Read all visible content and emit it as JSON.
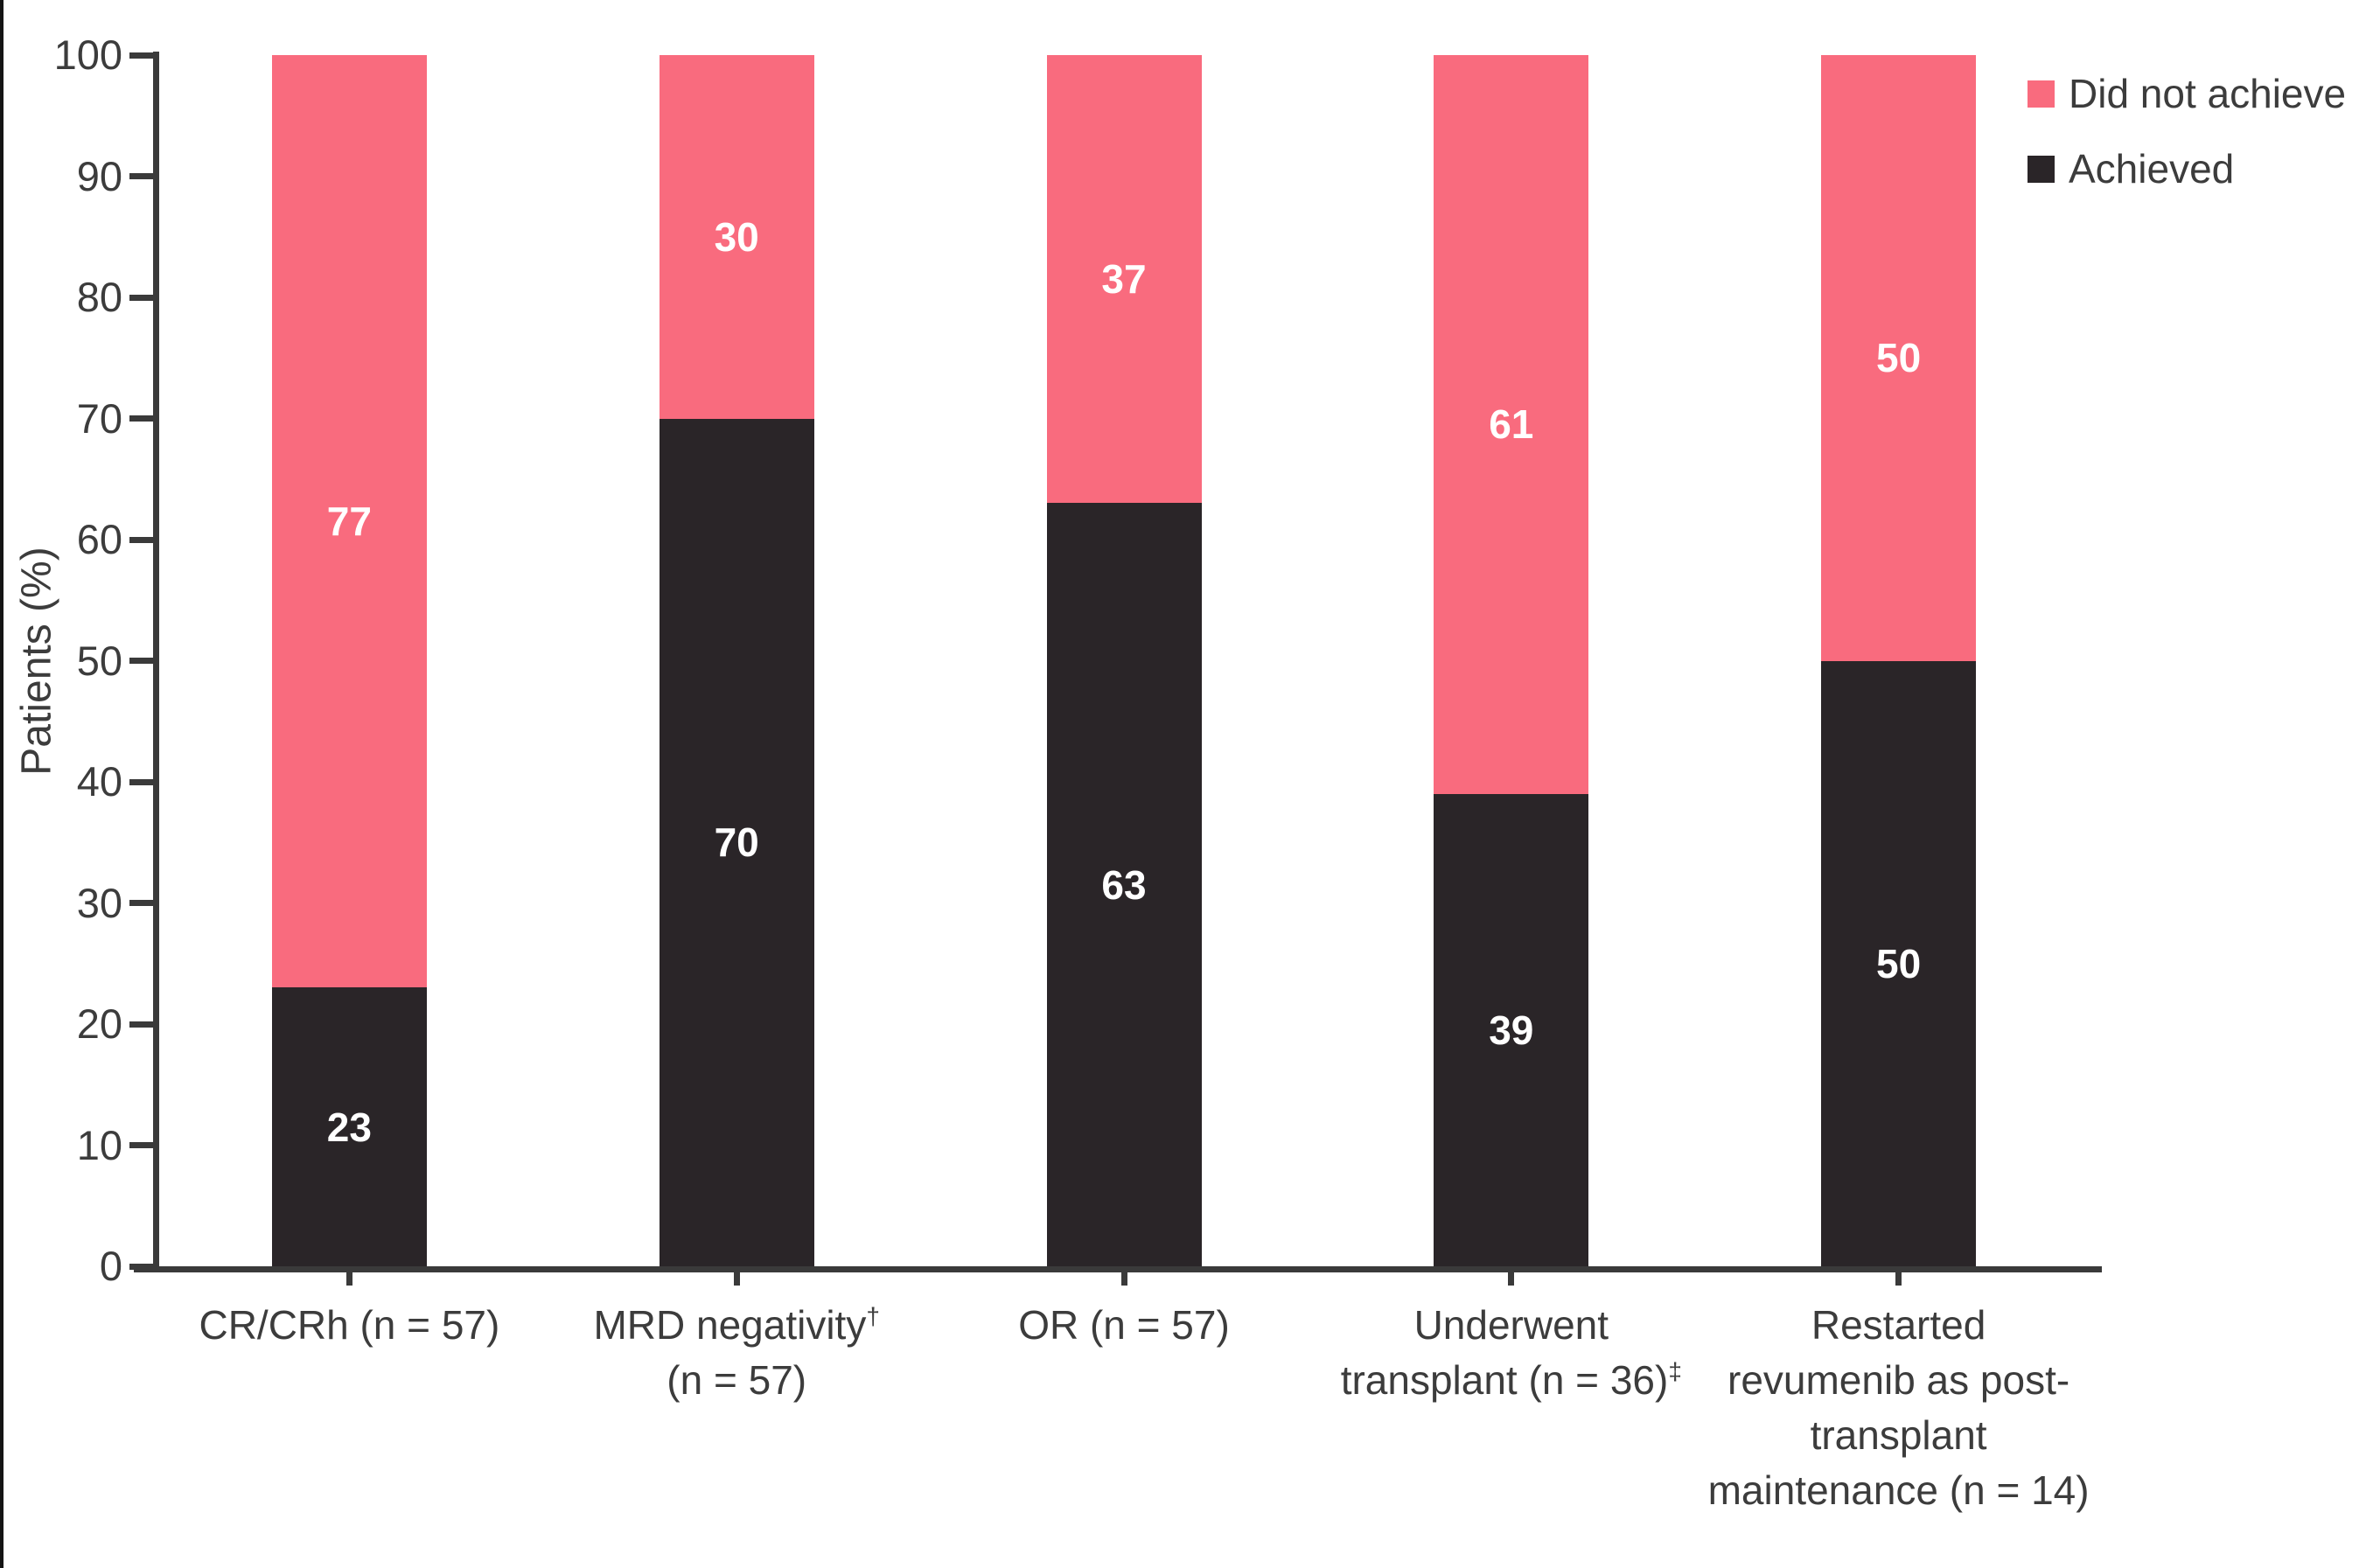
{
  "y_axis": {
    "title": "Patients (%)"
  },
  "legend": {
    "items": [
      {
        "label": "Did not achieve",
        "color": "#f96b7e"
      },
      {
        "label": "Achieved",
        "color": "#2a2528"
      }
    ]
  },
  "chart_data": {
    "type": "bar",
    "stacked": true,
    "orientation": "vertical",
    "title": "",
    "xlabel": "",
    "ylabel": "Patients (%)",
    "ylim": [
      0,
      100
    ],
    "yticks": [
      0,
      10,
      20,
      30,
      40,
      50,
      60,
      70,
      80,
      90,
      100
    ],
    "grid": false,
    "legend_position": "top-right",
    "bar_label_color": "#ffffff",
    "axis_color": "#3a3a3a",
    "categories": [
      "CR/CRh (n = 57)",
      "MRD negativity† (n = 57)",
      "OR (n = 57)",
      "Underwent transplant (n = 36)‡",
      "Restarted revumenib as post-transplant maintenance (n = 14)"
    ],
    "category_labels": [
      [
        [
          {
            "t": "CR/CRh (n = 57)"
          }
        ]
      ],
      [
        [
          {
            "t": "MRD negativity"
          },
          {
            "t": "†",
            "sup": true
          }
        ],
        [
          {
            "t": "(n = 57)"
          }
        ]
      ],
      [
        [
          {
            "t": "OR (n = 57)"
          }
        ]
      ],
      [
        [
          {
            "t": "Underwent"
          }
        ],
        [
          {
            "t": "transplant (n = 36)"
          },
          {
            "t": "‡",
            "sup": true
          }
        ]
      ],
      [
        [
          {
            "t": "Restarted"
          }
        ],
        [
          {
            "t": "revumenib as post-"
          }
        ],
        [
          {
            "t": "transplant"
          }
        ],
        [
          {
            "t": "maintenance (n = 14)"
          }
        ]
      ]
    ],
    "series": [
      {
        "name": "Achieved",
        "color": "#2a2528",
        "values": [
          23,
          70,
          63,
          39,
          50
        ]
      },
      {
        "name": "Did not achieve",
        "color": "#f96b7e",
        "values": [
          77,
          30,
          37,
          61,
          50
        ]
      }
    ]
  }
}
